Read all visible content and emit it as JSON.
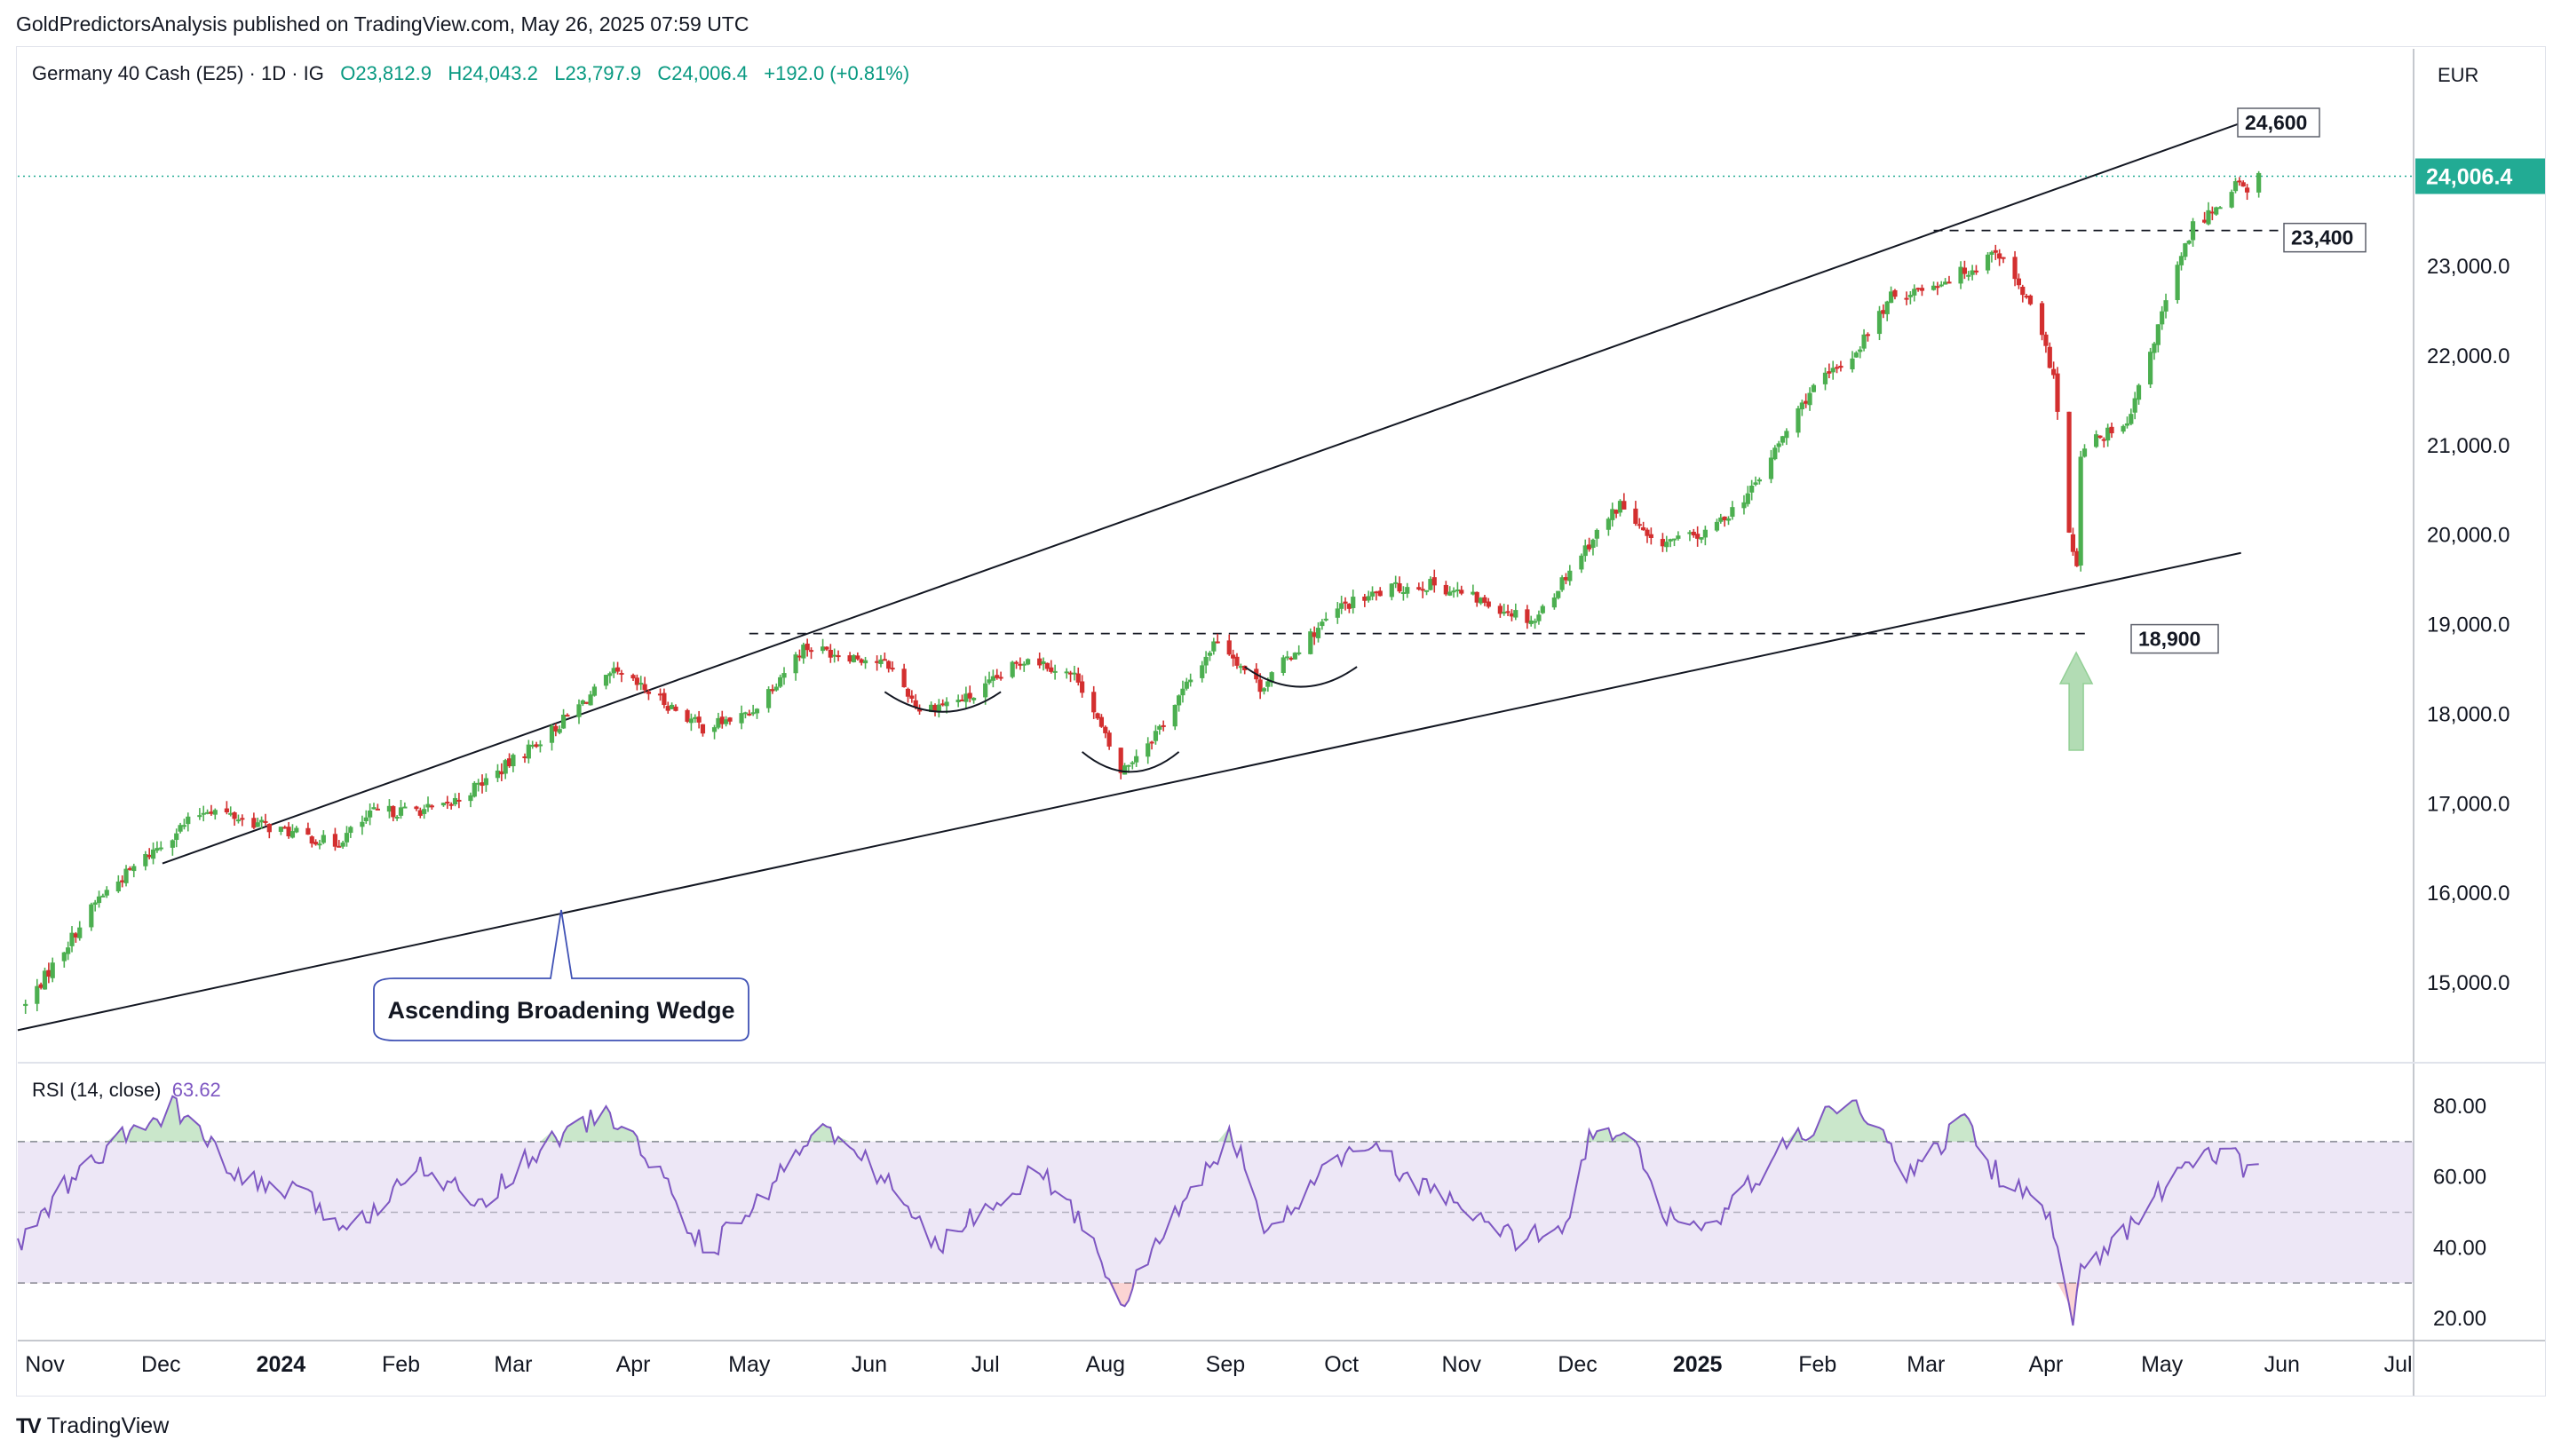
{
  "header": {
    "publisher": "GoldPredictorsAnalysis published on TradingView.com, May 26, 2025 07:59 UTC"
  },
  "legend": {
    "symbol": "Germany 40 Cash (E25) · 1D · IG",
    "open": "O23,812.9",
    "high": "H24,043.2",
    "low": "L23,797.9",
    "close": "C24,006.4",
    "change": "+192.0 (+0.81%)"
  },
  "currency": "EUR",
  "rsi": {
    "label": "RSI (14, close)",
    "value_text": "63.62",
    "levels": {
      "upper": 70,
      "middle": 50,
      "lower": 30
    },
    "tick_labels": [
      "80.00",
      "60.00",
      "40.00",
      "20.00"
    ]
  },
  "footer": {
    "brand": "TradingView",
    "logo_icon": "tradingview-logo-icon"
  },
  "colors": {
    "up": "#26a69a",
    "up_body": "#4caf50",
    "down": "#d32f2f",
    "rsi_line": "#7e57c2",
    "rsi_band": "#ede7f6",
    "last_price": "#22ab94",
    "arrow": "#a5d6a7"
  },
  "chart_data": {
    "type": "candlestick",
    "y_axis": {
      "range": [
        14200,
        25200
      ],
      "tick_labels": [
        "23,000.0",
        "22,000.0",
        "21,000.0",
        "20,000.0",
        "19,000.0",
        "18,000.0",
        "17,000.0",
        "16,000.0",
        "15,000.0"
      ]
    },
    "x_axis": {
      "range": [
        "2023-10-25",
        "2025-07-05"
      ],
      "tick_labels": [
        {
          "label": "Nov",
          "date": "2023-11-01"
        },
        {
          "label": "Dec",
          "date": "2023-12-01"
        },
        {
          "label": "2024",
          "date": "2024-01-01",
          "bold": true
        },
        {
          "label": "Feb",
          "date": "2024-02-01"
        },
        {
          "label": "Mar",
          "date": "2024-03-01"
        },
        {
          "label": "Apr",
          "date": "2024-04-01"
        },
        {
          "label": "May",
          "date": "2024-05-01"
        },
        {
          "label": "Jun",
          "date": "2024-06-01"
        },
        {
          "label": "Jul",
          "date": "2024-07-01"
        },
        {
          "label": "Aug",
          "date": "2024-08-01"
        },
        {
          "label": "Sep",
          "date": "2024-09-01"
        },
        {
          "label": "Oct",
          "date": "2024-10-01"
        },
        {
          "label": "Nov",
          "date": "2024-11-01"
        },
        {
          "label": "Dec",
          "date": "2024-12-01"
        },
        {
          "label": "2025",
          "date": "2025-01-01",
          "bold": true
        },
        {
          "label": "Feb",
          "date": "2025-02-01"
        },
        {
          "label": "Mar",
          "date": "2025-03-01"
        },
        {
          "label": "Apr",
          "date": "2025-04-01"
        },
        {
          "label": "May",
          "date": "2025-05-01"
        },
        {
          "label": "Jun",
          "date": "2025-06-01"
        },
        {
          "label": "Jul",
          "date": "2025-07-01"
        }
      ]
    },
    "price_anchors": [
      [
        "2023-10-27",
        14750
      ],
      [
        "2023-11-15",
        15950
      ],
      [
        "2023-12-05",
        16700
      ],
      [
        "2023-12-13",
        16950
      ],
      [
        "2023-12-28",
        16750
      ],
      [
        "2024-01-15",
        16550
      ],
      [
        "2024-01-25",
        16900
      ],
      [
        "2024-02-12",
        16950
      ],
      [
        "2024-02-26",
        17350
      ],
      [
        "2024-03-12",
        17850
      ],
      [
        "2024-03-27",
        18450
      ],
      [
        "2024-04-05",
        18250
      ],
      [
        "2024-04-19",
        17850
      ],
      [
        "2024-05-01",
        18000
      ],
      [
        "2024-05-15",
        18750
      ],
      [
        "2024-05-28",
        18650
      ],
      [
        "2024-06-06",
        18550
      ],
      [
        "2024-06-14",
        18050
      ],
      [
        "2024-06-28",
        18200
      ],
      [
        "2024-07-12",
        18650
      ],
      [
        "2024-07-25",
        18400
      ],
      [
        "2024-08-05",
        17350
      ],
      [
        "2024-08-15",
        17850
      ],
      [
        "2024-08-30",
        18850
      ],
      [
        "2024-09-10",
        18300
      ],
      [
        "2024-09-20",
        18750
      ],
      [
        "2024-10-01",
        19200
      ],
      [
        "2024-10-14",
        19400
      ],
      [
        "2024-10-25",
        19450
      ],
      [
        "2024-11-07",
        19250
      ],
      [
        "2024-11-20",
        19050
      ],
      [
        "2024-12-02",
        19800
      ],
      [
        "2024-12-12",
        20350
      ],
      [
        "2024-12-20",
        19900
      ],
      [
        "2025-01-03",
        20000
      ],
      [
        "2025-01-15",
        20500
      ],
      [
        "2025-01-30",
        21600
      ],
      [
        "2025-02-10",
        22000
      ],
      [
        "2025-02-20",
        22650
      ],
      [
        "2025-03-03",
        22800
      ],
      [
        "2025-03-14",
        23000
      ],
      [
        "2025-03-19",
        23200
      ],
      [
        "2025-03-28",
        22550
      ],
      [
        "2025-04-03",
        21800
      ],
      [
        "2025-04-07",
        20000
      ],
      [
        "2025-04-09",
        19600
      ],
      [
        "2025-04-10",
        20900
      ],
      [
        "2025-04-15",
        21100
      ],
      [
        "2025-04-22",
        21200
      ],
      [
        "2025-05-02",
        22600
      ],
      [
        "2025-05-09",
        23450
      ],
      [
        "2025-05-16",
        23700
      ],
      [
        "2025-05-20",
        23950
      ],
      [
        "2025-05-23",
        23813
      ],
      [
        "2025-05-26",
        24006
      ]
    ],
    "last_price": {
      "label": "24,006.4",
      "value": 24006.4
    },
    "horizontal_levels": [
      {
        "label": "23,400",
        "value": 23400,
        "from": "2025-03-03",
        "to": "2025-05-26"
      },
      {
        "label": "18,900",
        "value": 18900,
        "from": "2024-05-01",
        "to": "2025-04-12"
      }
    ],
    "wedge": {
      "name": "Ascending Broadening Wedge",
      "upper_line": [
        [
          "2023-11-05",
          16650
        ],
        [
          "2025-05-26",
          24600
        ]
      ],
      "lower_line": [
        [
          "2023-10-25",
          14570
        ],
        [
          "2025-05-26",
          19850
        ]
      ],
      "upper_label": "24,600"
    },
    "rounded_bottoms": [
      {
        "from": "2024-06-05",
        "to": "2024-07-05",
        "value": 18100
      },
      {
        "from": "2024-07-26",
        "to": "2024-08-20",
        "value": 17430
      },
      {
        "from": "2024-09-06",
        "to": "2024-10-05",
        "value": 18380
      }
    ],
    "rsi_anchors": [
      [
        "2023-10-25",
        40
      ],
      [
        "2023-11-05",
        56
      ],
      [
        "2023-11-20",
        70
      ],
      [
        "2023-12-05",
        80
      ],
      [
        "2023-12-20",
        60
      ],
      [
        "2024-01-05",
        55
      ],
      [
        "2024-01-20",
        45
      ],
      [
        "2024-02-05",
        65
      ],
      [
        "2024-02-20",
        52
      ],
      [
        "2024-03-10",
        70
      ],
      [
        "2024-03-25",
        78
      ],
      [
        "2024-04-05",
        66
      ],
      [
        "2024-04-20",
        38
      ],
      [
        "2024-05-05",
        55
      ],
      [
        "2024-05-18",
        75
      ],
      [
        "2024-06-05",
        60
      ],
      [
        "2024-06-18",
        40
      ],
      [
        "2024-07-05",
        55
      ],
      [
        "2024-07-15",
        62
      ],
      [
        "2024-07-25",
        48
      ],
      [
        "2024-08-06",
        25
      ],
      [
        "2024-08-22",
        55
      ],
      [
        "2024-09-03",
        72
      ],
      [
        "2024-09-12",
        42
      ],
      [
        "2024-09-25",
        60
      ],
      [
        "2024-10-08",
        70
      ],
      [
        "2024-10-20",
        58
      ],
      [
        "2024-10-30",
        52
      ],
      [
        "2024-11-15",
        42
      ],
      [
        "2024-11-28",
        48
      ],
      [
        "2024-12-05",
        74
      ],
      [
        "2024-12-15",
        70
      ],
      [
        "2024-12-23",
        50
      ],
      [
        "2025-01-05",
        45
      ],
      [
        "2025-01-20",
        65
      ],
      [
        "2025-02-05",
        78
      ],
      [
        "2025-02-12",
        80
      ],
      [
        "2025-02-25",
        60
      ],
      [
        "2025-03-06",
        70
      ],
      [
        "2025-03-10",
        80
      ],
      [
        "2025-03-18",
        62
      ],
      [
        "2025-03-28",
        55
      ],
      [
        "2025-04-03",
        45
      ],
      [
        "2025-04-08",
        20
      ],
      [
        "2025-04-10",
        32
      ],
      [
        "2025-04-15",
        38
      ],
      [
        "2025-04-25",
        48
      ],
      [
        "2025-05-05",
        62
      ],
      [
        "2025-05-15",
        66
      ],
      [
        "2025-05-20",
        70
      ],
      [
        "2025-05-23",
        60
      ],
      [
        "2025-05-26",
        63.62
      ]
    ]
  }
}
